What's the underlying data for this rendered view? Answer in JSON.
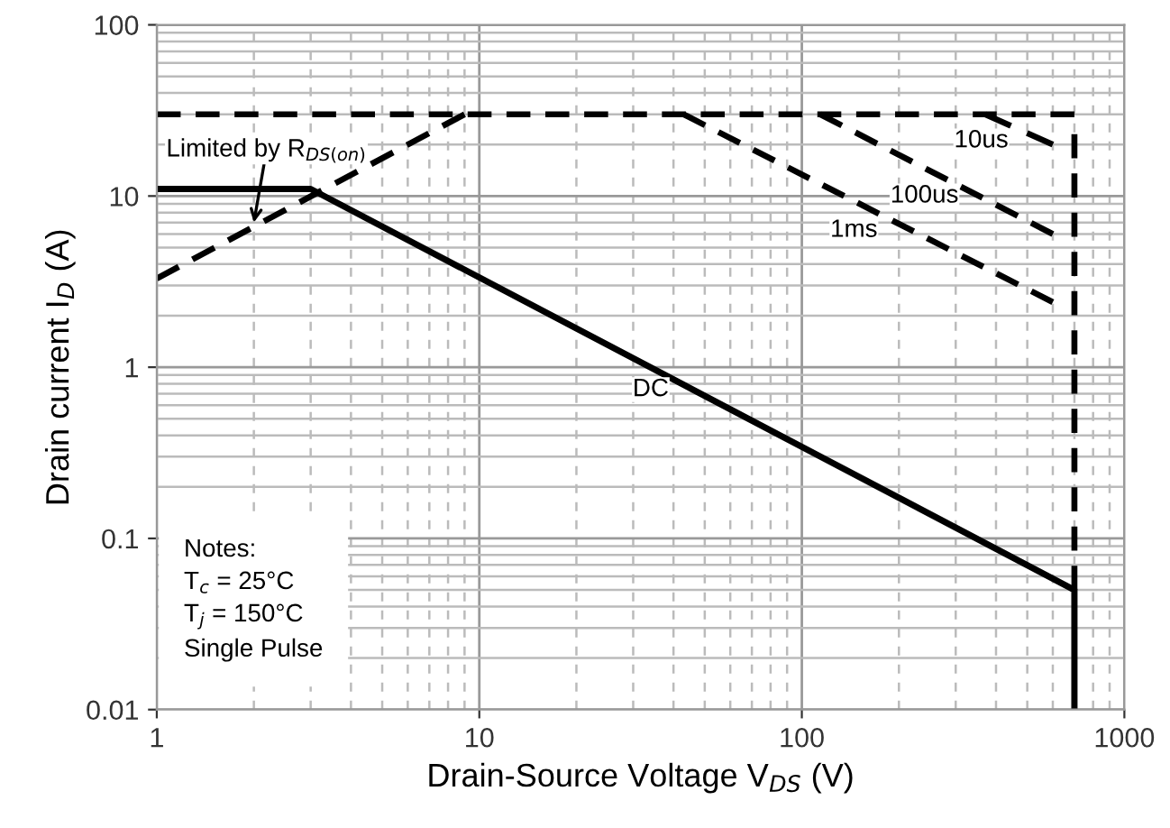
{
  "chart_data": {
    "type": "line",
    "xlabel": "Drain-Source Voltage V$_{DS}$ (V)",
    "ylabel": "Drain current I$_{D}$ (A)",
    "log": "xy",
    "grid": true,
    "xlim": [
      1,
      1000
    ],
    "ylim": [
      0.01,
      100
    ],
    "xticks": [
      1,
      10,
      100,
      1000
    ],
    "yticks": [
      0.01,
      0.1,
      1,
      10,
      100
    ],
    "series": [
      {
        "color": "#000000",
        "line_style": "solid",
        "x": [
          1,
          3,
          700,
          700
        ],
        "values": [
          11,
          11,
          0.05,
          0.01
        ]
      },
      {
        "color": "#000000",
        "line_style": "dashed",
        "x": [
          1,
          700
        ],
        "values": [
          30,
          30
        ]
      },
      {
        "color": "#000000",
        "line_style": "dashed",
        "x": [
          700,
          700
        ],
        "values": [
          23,
          0.05
        ]
      },
      {
        "color": "#000000",
        "line_style": "dashed",
        "x": [
          1,
          9
        ],
        "values": [
          3.3,
          30
        ]
      },
      {
        "color": "#000000",
        "line_style": "dashed",
        "x": [
          370,
          600
        ],
        "values": [
          30,
          20
        ]
      },
      {
        "color": "#000000",
        "line_style": "dashed",
        "x": [
          114,
          600
        ],
        "values": [
          30,
          6
        ]
      },
      {
        "color": "#000000",
        "line_style": "dashed",
        "x": [
          43,
          600
        ],
        "values": [
          30,
          2.4
        ]
      }
    ],
    "annotations": [
      {
        "text": "Limited by R$_{DS(on)}$",
        "x": 2,
        "y": 7
      },
      {
        "text": "10us",
        "x": 360,
        "y": 21
      },
      {
        "text": "100us",
        "x": 240,
        "y": 10
      },
      {
        "text": "1ms",
        "x": 145,
        "y": 6.3
      },
      {
        "text": "DC",
        "x": 34,
        "y": 0.74
      },
      "Notes:\nT$_{c}$ = 25°C\nT$_{j}$ = 150°C\nSingle Pulse"
    ]
  }
}
